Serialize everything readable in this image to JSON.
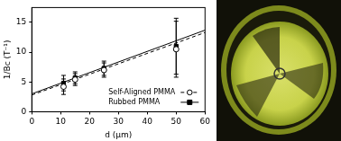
{
  "chart_data": {
    "type": "scatter",
    "x_label": "d (μm)",
    "y_label": "1/Bc (T⁻¹)",
    "xlim": [
      0,
      60
    ],
    "xticks": [
      0,
      10,
      20,
      30,
      40,
      50,
      60
    ],
    "ylim": [
      0,
      17.5
    ],
    "yticks": [
      0,
      5,
      10,
      15
    ],
    "grid": false,
    "legend": "lower right",
    "series": [
      {
        "name": "Self-Aligned PMMA",
        "color": "#000000",
        "marker": "circle_open",
        "line_style": "dashed",
        "x": [
          11,
          15,
          25,
          50
        ],
        "values": [
          4.2,
          5.4,
          7.0,
          10.5
        ],
        "errors": [
          1.3,
          1.0,
          1.2,
          4.7
        ],
        "fit_x": [
          0,
          60
        ],
        "fit_values": [
          2.8,
          13.3
        ]
      },
      {
        "name": "Rubbed PMMA",
        "color": "#000000",
        "marker": "square",
        "line_style": "solid",
        "x": [
          11,
          15,
          25,
          50
        ],
        "values": [
          4.8,
          5.7,
          7.3,
          11.0
        ],
        "errors": [
          1.3,
          1.0,
          1.2,
          4.7
        ],
        "fit_x": [
          0,
          60
        ],
        "fit_values": [
          3.0,
          13.7
        ]
      }
    ]
  }
}
